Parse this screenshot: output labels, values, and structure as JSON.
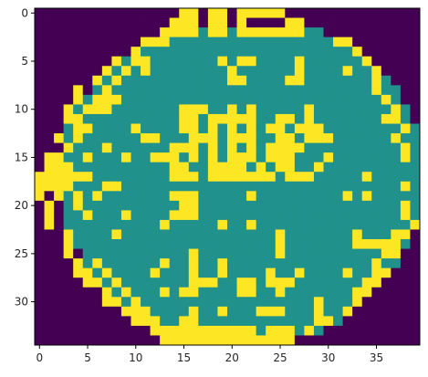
{
  "chart_data": {
    "type": "heatmap",
    "title": "",
    "xlabel": "",
    "ylabel": "",
    "colormap": "viridis",
    "colors": {
      "0": "#440154",
      "1": "#21918c",
      "2": "#fde725"
    },
    "rows": 35,
    "cols": 40,
    "x_ticks": [
      0,
      5,
      10,
      15,
      20,
      25,
      30,
      35
    ],
    "y_ticks": [
      0,
      5,
      10,
      15,
      20,
      25,
      30
    ],
    "xlim": [
      -0.5,
      39.5
    ],
    "ylim": [
      34.5,
      -0.5
    ],
    "grid": false,
    "legend": false,
    "values": [
      "0000000000000000000000000000000000000000",
      "0000000000000000000000000000000000000000",
      "0000000000000022111111111111110000000000",
      "0000000000002211111111111111111100000000",
      "0000000000211111111111111111111111000000",
      "0000000001211111111111111111111111100000",
      "0000000012111111111111111111111111110000",
      "0000000121111111111111111111111111111000",
      "0000001211111111111111111111111111111100",
      "0000012111111111111111111111111111111100",
      "0000121111111111111111111111111111111110",
      "0000211111111111111111111111111111111110",
      "0001211111111111111111111111111111111111",
      "0001211111111111111111111111111111111111",
      "0001111111111111111111111111111111111111",
      "0021111111111111111111111111111111111111",
      "0021111111111111111111111111111111111111",
      "0021111111111111111111111111111111111111",
      "0021111111111111111111111111111111111111",
      "0021111111111111111111111111111111111111",
      "0001211111111111111111111111111111111111",
      "0001111111111111111111111111111111111111",
      "0001111111111111111111111111111111111112",
      "0000111111111111111111111111111111111120",
      "0000111111111111111111111111111111111110",
      "0000011111111111111111111111111111111100",
      "0000012111111111111111111111111111111100",
      "0000001211111111111111111111111111111000",
      "0000000121111111111111111111111111110000",
      "0000000012111111111111111111111111100000",
      "0000000001211111111111111111111111000000",
      "0000000000121111111111111111111110000000",
      "0000000000012111111111111111111100000000",
      "0000000000000221111111111111110000000000",
      "0000000000000000222222222220000000000000"
    ],
    "overlay_yellow": [
      [
        0,
        15
      ],
      [
        0,
        16
      ],
      [
        0,
        18
      ],
      [
        0,
        19
      ],
      [
        0,
        21
      ],
      [
        0,
        22
      ],
      [
        0,
        23
      ],
      [
        0,
        24
      ],
      [
        0,
        25
      ],
      [
        1,
        14
      ],
      [
        1,
        15
      ],
      [
        1,
        16
      ],
      [
        1,
        18
      ],
      [
        1,
        19
      ],
      [
        1,
        21
      ],
      [
        1,
        26
      ],
      [
        1,
        27
      ],
      [
        2,
        13
      ],
      [
        2,
        14
      ],
      [
        2,
        15
      ],
      [
        2,
        16
      ],
      [
        2,
        18
      ],
      [
        2,
        19
      ],
      [
        2,
        21
      ],
      [
        2,
        22
      ],
      [
        2,
        23
      ],
      [
        2,
        24
      ],
      [
        2,
        25
      ],
      [
        2,
        26
      ],
      [
        2,
        27
      ],
      [
        3,
        11
      ],
      [
        3,
        12
      ],
      [
        3,
        31
      ],
      [
        3,
        32
      ],
      [
        4,
        10
      ],
      [
        4,
        33
      ],
      [
        5,
        8
      ],
      [
        5,
        10
      ],
      [
        5,
        11
      ],
      [
        5,
        19
      ],
      [
        5,
        21
      ],
      [
        5,
        22
      ],
      [
        5,
        27
      ],
      [
        5,
        34
      ],
      [
        6,
        7
      ],
      [
        6,
        9
      ],
      [
        6,
        11
      ],
      [
        6,
        20
      ],
      [
        6,
        27
      ],
      [
        6,
        32
      ],
      [
        6,
        35
      ],
      [
        7,
        6
      ],
      [
        7,
        20
      ],
      [
        7,
        21
      ],
      [
        7,
        26
      ],
      [
        7,
        27
      ],
      [
        7,
        35
      ],
      [
        8,
        4
      ],
      [
        8,
        7
      ],
      [
        8,
        35
      ],
      [
        9,
        4
      ],
      [
        9,
        7
      ],
      [
        9,
        8
      ],
      [
        9,
        36
      ],
      [
        10,
        3
      ],
      [
        10,
        6
      ],
      [
        10,
        7
      ],
      [
        10,
        15
      ],
      [
        10,
        16
      ],
      [
        10,
        17
      ],
      [
        10,
        20
      ],
      [
        10,
        22
      ],
      [
        10,
        28
      ],
      [
        10,
        37
      ],
      [
        11,
        3
      ],
      [
        11,
        4
      ],
      [
        11,
        15
      ],
      [
        11,
        16
      ],
      [
        11,
        18
      ],
      [
        11,
        19
      ],
      [
        11,
        20
      ],
      [
        11,
        21
      ],
      [
        11,
        22
      ],
      [
        11,
        25
      ],
      [
        11,
        26
      ],
      [
        11,
        28
      ],
      [
        11,
        36
      ],
      [
        11,
        37
      ],
      [
        12,
        4
      ],
      [
        12,
        5
      ],
      [
        12,
        10
      ],
      [
        12,
        15
      ],
      [
        12,
        16
      ],
      [
        12,
        18
      ],
      [
        12,
        20
      ],
      [
        12,
        22
      ],
      [
        12,
        24
      ],
      [
        12,
        25
      ],
      [
        12,
        27
      ],
      [
        12,
        28
      ],
      [
        12,
        29
      ],
      [
        12,
        38
      ],
      [
        13,
        2
      ],
      [
        13,
        11
      ],
      [
        13,
        12
      ],
      [
        13,
        16
      ],
      [
        13,
        17
      ],
      [
        13,
        18
      ],
      [
        13,
        20
      ],
      [
        13,
        21
      ],
      [
        13,
        22
      ],
      [
        13,
        25
      ],
      [
        13,
        26
      ],
      [
        13,
        28
      ],
      [
        13,
        29
      ],
      [
        13,
        30
      ],
      [
        13,
        37
      ],
      [
        14,
        3
      ],
      [
        14,
        7
      ],
      [
        14,
        14
      ],
      [
        14,
        15
      ],
      [
        14,
        16
      ],
      [
        14,
        18
      ],
      [
        14,
        20
      ],
      [
        14,
        22
      ],
      [
        14,
        24
      ],
      [
        14,
        25
      ],
      [
        14,
        26
      ],
      [
        14,
        27
      ],
      [
        14,
        38
      ],
      [
        15,
        1
      ],
      [
        15,
        2
      ],
      [
        15,
        5
      ],
      [
        15,
        9
      ],
      [
        15,
        12
      ],
      [
        15,
        13
      ],
      [
        15,
        14
      ],
      [
        15,
        16
      ],
      [
        15,
        18
      ],
      [
        15,
        20
      ],
      [
        15,
        21
      ],
      [
        15,
        22
      ],
      [
        15,
        24
      ],
      [
        15,
        25
      ],
      [
        15,
        26
      ],
      [
        15,
        30
      ],
      [
        15,
        38
      ],
      [
        16,
        1
      ],
      [
        16,
        3
      ],
      [
        16,
        14
      ],
      [
        16,
        15
      ],
      [
        16,
        18
      ],
      [
        16,
        19
      ],
      [
        16,
        20
      ],
      [
        16,
        21
      ],
      [
        16,
        23
      ],
      [
        16,
        25
      ],
      [
        16,
        26
      ],
      [
        16,
        29
      ],
      [
        17,
        0
      ],
      [
        17,
        1
      ],
      [
        17,
        3
      ],
      [
        17,
        4
      ],
      [
        17,
        5
      ],
      [
        17,
        14
      ],
      [
        17,
        15
      ],
      [
        17,
        16
      ],
      [
        17,
        18
      ],
      [
        17,
        19
      ],
      [
        17,
        20
      ],
      [
        17,
        21
      ],
      [
        17,
        22
      ],
      [
        17,
        23
      ],
      [
        17,
        24
      ],
      [
        17,
        26
      ],
      [
        17,
        27
      ],
      [
        17,
        28
      ],
      [
        17,
        34
      ],
      [
        18,
        0
      ],
      [
        18,
        1
      ],
      [
        18,
        3
      ],
      [
        18,
        7
      ],
      [
        18,
        8
      ],
      [
        18,
        38
      ],
      [
        19,
        0
      ],
      [
        19,
        2
      ],
      [
        19,
        4
      ],
      [
        19,
        6
      ],
      [
        19,
        14
      ],
      [
        19,
        15
      ],
      [
        19,
        16
      ],
      [
        19,
        22
      ],
      [
        19,
        32
      ],
      [
        19,
        34
      ],
      [
        20,
        1
      ],
      [
        20,
        15
      ],
      [
        20,
        16
      ],
      [
        20,
        38
      ],
      [
        21,
        1
      ],
      [
        21,
        5
      ],
      [
        21,
        9
      ],
      [
        21,
        14
      ],
      [
        21,
        15
      ],
      [
        21,
        16
      ],
      [
        21,
        38
      ],
      [
        22,
        1
      ],
      [
        22,
        13
      ],
      [
        22,
        19
      ],
      [
        22,
        22
      ],
      [
        23,
        3
      ],
      [
        23,
        8
      ],
      [
        23,
        25
      ],
      [
        23,
        33
      ],
      [
        23,
        37
      ],
      [
        23,
        38
      ],
      [
        24,
        3
      ],
      [
        24,
        25
      ],
      [
        24,
        33
      ],
      [
        24,
        34
      ],
      [
        24,
        35
      ],
      [
        24,
        36
      ],
      [
        24,
        37
      ],
      [
        25,
        3
      ],
      [
        25,
        16
      ],
      [
        25,
        25
      ],
      [
        25,
        36
      ],
      [
        25,
        37
      ],
      [
        26,
        4
      ],
      [
        26,
        13
      ],
      [
        26,
        16
      ],
      [
        26,
        19
      ],
      [
        26,
        35
      ],
      [
        27,
        4
      ],
      [
        27,
        5
      ],
      [
        27,
        12
      ],
      [
        27,
        16
      ],
      [
        27,
        19
      ],
      [
        27,
        24
      ],
      [
        27,
        27
      ],
      [
        27,
        32
      ],
      [
        27,
        35
      ],
      [
        27,
        36
      ],
      [
        28,
        5
      ],
      [
        28,
        6
      ],
      [
        28,
        16
      ],
      [
        28,
        17
      ],
      [
        28,
        18
      ],
      [
        28,
        21
      ],
      [
        28,
        22
      ],
      [
        28,
        24
      ],
      [
        28,
        25
      ],
      [
        28,
        26
      ],
      [
        28,
        34
      ],
      [
        28,
        35
      ],
      [
        29,
        7
      ],
      [
        29,
        13
      ],
      [
        29,
        15
      ],
      [
        29,
        16
      ],
      [
        29,
        21
      ],
      [
        29,
        22
      ],
      [
        29,
        25
      ],
      [
        29,
        33
      ],
      [
        29,
        34
      ],
      [
        30,
        7
      ],
      [
        30,
        8
      ],
      [
        30,
        29
      ],
      [
        30,
        33
      ],
      [
        31,
        9
      ],
      [
        31,
        10
      ],
      [
        31,
        16
      ],
      [
        31,
        19
      ],
      [
        31,
        23
      ],
      [
        31,
        24
      ],
      [
        31,
        25
      ],
      [
        31,
        29
      ],
      [
        31,
        32
      ],
      [
        32,
        10
      ],
      [
        32,
        11
      ],
      [
        32,
        15
      ],
      [
        32,
        16
      ],
      [
        32,
        29
      ],
      [
        32,
        30
      ],
      [
        33,
        12
      ],
      [
        33,
        13
      ],
      [
        33,
        14
      ],
      [
        33,
        15
      ],
      [
        33,
        16
      ],
      [
        33,
        17
      ],
      [
        33,
        18
      ],
      [
        33,
        19
      ],
      [
        33,
        20
      ],
      [
        33,
        21
      ],
      [
        33,
        22
      ],
      [
        33,
        24
      ],
      [
        33,
        25
      ],
      [
        33,
        26
      ],
      [
        33,
        28
      ],
      [
        34,
        13
      ],
      [
        34,
        14
      ],
      [
        34,
        15
      ],
      [
        34,
        16
      ],
      [
        34,
        17
      ],
      [
        34,
        18
      ],
      [
        34,
        19
      ],
      [
        34,
        20
      ],
      [
        34,
        21
      ],
      [
        34,
        22
      ],
      [
        34,
        23
      ],
      [
        34,
        24
      ],
      [
        34,
        25
      ]
    ]
  }
}
